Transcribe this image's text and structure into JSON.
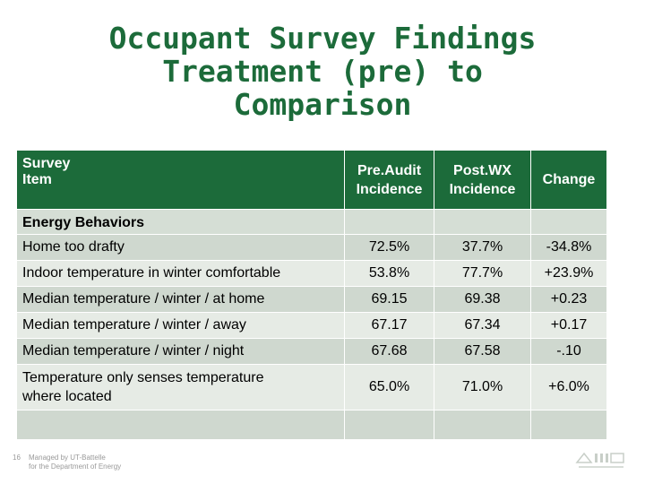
{
  "title": {
    "line1": "Occupant Survey Findings",
    "line2": "Treatment (pre) to",
    "line3": "Comparison"
  },
  "table": {
    "headers": {
      "item_line1": "Survey",
      "item_line2": "Item",
      "pre_line1": "Pre.Audit",
      "pre_line2": "Incidence",
      "post_line1": "Post.WX",
      "post_line2": "Incidence",
      "change": "Change"
    },
    "section_label": "Energy Behaviors",
    "rows": [
      {
        "label": "Home too drafty",
        "pre": "72.5%",
        "post": "37.7%",
        "change": "-34.8%"
      },
      {
        "label": "Indoor temperature in winter comfortable",
        "pre": "53.8%",
        "post": "77.7%",
        "change": "+23.9%"
      },
      {
        "label": "Median temperature / winter / at home",
        "pre": "69.15",
        "post": "69.38",
        "change": "+0.23"
      },
      {
        "label": "Median temperature / winter / away",
        "pre": "67.17",
        "post": "67.34",
        "change": "+0.17"
      },
      {
        "label": "Median temperature / winter / night",
        "pre": "67.68",
        "post": "67.58",
        "change": "-.10"
      },
      {
        "label_line1": "Temperature only senses temperature",
        "label_line2": "where located",
        "pre": "65.0%",
        "post": "71.0%",
        "change": "+6.0%"
      }
    ]
  },
  "footer": {
    "page_number": "16",
    "line1": "Managed by UT-Battelle",
    "line2": "for the Department of Energy"
  },
  "colors": {
    "brand_green": "#1c6b3a",
    "row_dark": "#cfd8cf",
    "row_light": "#e6ebe5"
  }
}
